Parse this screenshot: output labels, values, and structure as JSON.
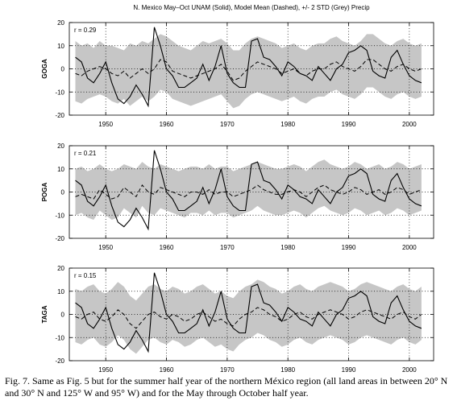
{
  "figure_title": "N. Mexico May–Oct UNAM (Solid), Model Mean (Dashed), +/- 2 STD (Grey) Precip",
  "caption": "Fig. 7. Same as Fig. 5 but for the summer half year of the northern México region (all land areas in between 20° N and 30° N and 125° W and 95° W) and for the May through October half year.",
  "chart_data": [
    {
      "type": "line",
      "ylabel": "GOGA",
      "annotation": "r = 0.29",
      "x": [
        1945,
        1946,
        1947,
        1948,
        1949,
        1950,
        1951,
        1952,
        1953,
        1954,
        1955,
        1956,
        1957,
        1958,
        1959,
        1960,
        1961,
        1962,
        1963,
        1964,
        1965,
        1966,
        1967,
        1968,
        1969,
        1970,
        1971,
        1972,
        1973,
        1974,
        1975,
        1976,
        1977,
        1978,
        1979,
        1980,
        1981,
        1982,
        1983,
        1984,
        1985,
        1986,
        1987,
        1988,
        1989,
        1990,
        1991,
        1992,
        1993,
        1994,
        1995,
        1996,
        1997,
        1998,
        1999,
        2000,
        2001,
        2002
      ],
      "xlim": [
        1944,
        2004
      ],
      "ylim": [
        -20,
        20
      ],
      "xticks": [
        1950,
        1960,
        1970,
        1980,
        1990,
        2000
      ],
      "yticks": [
        -20,
        -10,
        0,
        10,
        20
      ],
      "grid": "dotted",
      "series": [
        {
          "style": "solid",
          "values": [
            5,
            3,
            -4,
            -6,
            -2,
            3,
            -6,
            -13,
            -15,
            -12,
            -7,
            -11,
            -16,
            18,
            10,
            0,
            -3,
            -8,
            -8,
            -6,
            -4,
            2,
            -5,
            1,
            10,
            -2,
            -6,
            -8,
            -8,
            12,
            13,
            5,
            4,
            1,
            -3,
            3,
            1,
            -2,
            -3,
            -5,
            1,
            -2,
            -5,
            0,
            2,
            7,
            8,
            10,
            8,
            -1,
            -3,
            -4,
            5,
            8,
            2,
            -3,
            -5,
            -6
          ]
        },
        {
          "style": "dashed",
          "values": [
            -2,
            -3,
            -1,
            0,
            1,
            0,
            -2,
            -3,
            -1,
            -4,
            -2,
            0,
            -2,
            0,
            4,
            3,
            -1,
            -2,
            -3,
            -4,
            -3,
            -2,
            -1,
            0,
            2,
            -1,
            -5,
            -4,
            -1,
            1,
            3,
            2,
            1,
            0,
            -2,
            -1,
            0,
            -2,
            -3,
            -1,
            0,
            0,
            2,
            3,
            1,
            0,
            -1,
            1,
            4,
            4,
            2,
            0,
            -1,
            1,
            2,
            0,
            -1,
            0
          ]
        },
        {
          "style": "band_upper",
          "values": [
            12,
            10,
            11,
            9,
            12,
            10,
            10,
            9,
            8,
            11,
            10,
            12,
            11,
            13,
            15,
            14,
            12,
            10,
            9,
            8,
            10,
            12,
            11,
            12,
            13,
            11,
            8,
            8,
            11,
            13,
            14,
            13,
            12,
            11,
            9,
            10,
            11,
            9,
            8,
            10,
            11,
            11,
            13,
            14,
            12,
            11,
            10,
            12,
            15,
            15,
            13,
            11,
            10,
            12,
            13,
            11,
            10,
            11
          ]
        },
        {
          "style": "band_lower",
          "values": [
            -14,
            -15,
            -13,
            -12,
            -11,
            -12,
            -14,
            -15,
            -13,
            -16,
            -14,
            -12,
            -14,
            -12,
            -9,
            -10,
            -13,
            -14,
            -15,
            -16,
            -15,
            -14,
            -13,
            -12,
            -11,
            -14,
            -17,
            -16,
            -13,
            -11,
            -10,
            -11,
            -12,
            -13,
            -14,
            -13,
            -12,
            -14,
            -15,
            -13,
            -12,
            -12,
            -10,
            -9,
            -11,
            -12,
            -13,
            -11,
            -8,
            -8,
            -10,
            -12,
            -13,
            -11,
            -10,
            -12,
            -13,
            -12
          ]
        }
      ]
    },
    {
      "type": "line",
      "ylabel": "POGA",
      "annotation": "r = 0.21",
      "x": [
        1945,
        1946,
        1947,
        1948,
        1949,
        1950,
        1951,
        1952,
        1953,
        1954,
        1955,
        1956,
        1957,
        1958,
        1959,
        1960,
        1961,
        1962,
        1963,
        1964,
        1965,
        1966,
        1967,
        1968,
        1969,
        1970,
        1971,
        1972,
        1973,
        1974,
        1975,
        1976,
        1977,
        1978,
        1979,
        1980,
        1981,
        1982,
        1983,
        1984,
        1985,
        1986,
        1987,
        1988,
        1989,
        1990,
        1991,
        1992,
        1993,
        1994,
        1995,
        1996,
        1997,
        1998,
        1999,
        2000,
        2001,
        2002
      ],
      "xlim": [
        1944,
        2004
      ],
      "ylim": [
        -20,
        20
      ],
      "xticks": [
        1950,
        1960,
        1970,
        1980,
        1990,
        2000
      ],
      "yticks": [
        -20,
        -10,
        0,
        10,
        20
      ],
      "grid": "dotted",
      "series": [
        {
          "style": "solid",
          "values": [
            5,
            3,
            -4,
            -6,
            -2,
            3,
            -6,
            -13,
            -15,
            -12,
            -7,
            -11,
            -16,
            18,
            10,
            0,
            -3,
            -8,
            -8,
            -6,
            -4,
            2,
            -5,
            1,
            10,
            -2,
            -6,
            -8,
            -8,
            12,
            13,
            5,
            4,
            1,
            -3,
            3,
            1,
            -2,
            -3,
            -5,
            1,
            -2,
            -5,
            0,
            2,
            7,
            8,
            10,
            8,
            -1,
            -3,
            -4,
            5,
            8,
            2,
            -3,
            -5,
            -6
          ]
        },
        {
          "style": "dashed",
          "values": [
            -2,
            -1,
            -2,
            -3,
            1,
            -1,
            -3,
            -2,
            2,
            0,
            -2,
            3,
            0,
            -1,
            2,
            1,
            0,
            -1,
            -2,
            0,
            0,
            -1,
            1,
            -1,
            0,
            0,
            -2,
            -1,
            0,
            1,
            3,
            1,
            0,
            -1,
            -1,
            0,
            1,
            0,
            -2,
            0,
            2,
            3,
            1,
            0,
            -1,
            0,
            2,
            1,
            -1,
            0,
            1,
            -1,
            0,
            2,
            1,
            -1,
            0,
            1
          ]
        },
        {
          "style": "band_upper",
          "values": [
            10,
            11,
            9,
            10,
            12,
            10,
            9,
            10,
            12,
            11,
            10,
            13,
            11,
            10,
            12,
            11,
            10,
            9,
            10,
            11,
            11,
            10,
            12,
            10,
            11,
            11,
            9,
            10,
            11,
            12,
            13,
            12,
            11,
            10,
            10,
            11,
            12,
            11,
            9,
            11,
            13,
            14,
            12,
            11,
            10,
            11,
            13,
            12,
            10,
            11,
            12,
            10,
            11,
            13,
            12,
            10,
            11,
            12
          ]
        },
        {
          "style": "band_lower",
          "values": [
            -10,
            -9,
            -11,
            -12,
            -8,
            -10,
            -12,
            -11,
            -7,
            -9,
            -11,
            -6,
            -9,
            -10,
            -7,
            -8,
            -9,
            -10,
            -11,
            -9,
            -9,
            -10,
            -8,
            -10,
            -9,
            -9,
            -11,
            -10,
            -9,
            -8,
            -6,
            -8,
            -9,
            -10,
            -10,
            -9,
            -8,
            -9,
            -11,
            -9,
            -7,
            -6,
            -8,
            -9,
            -10,
            -9,
            -7,
            -8,
            -10,
            -9,
            -8,
            -10,
            -9,
            -7,
            -8,
            -10,
            -9,
            -8
          ]
        }
      ]
    },
    {
      "type": "line",
      "ylabel": "TAGA",
      "annotation": "r = 0.15",
      "x": [
        1945,
        1946,
        1947,
        1948,
        1949,
        1950,
        1951,
        1952,
        1953,
        1954,
        1955,
        1956,
        1957,
        1958,
        1959,
        1960,
        1961,
        1962,
        1963,
        1964,
        1965,
        1966,
        1967,
        1968,
        1969,
        1970,
        1971,
        1972,
        1973,
        1974,
        1975,
        1976,
        1977,
        1978,
        1979,
        1980,
        1981,
        1982,
        1983,
        1984,
        1985,
        1986,
        1987,
        1988,
        1989,
        1990,
        1991,
        1992,
        1993,
        1994,
        1995,
        1996,
        1997,
        1998,
        1999,
        2000,
        2001,
        2002
      ],
      "xlim": [
        1944,
        2004
      ],
      "ylim": [
        -20,
        20
      ],
      "xticks": [
        1950,
        1960,
        1970,
        1980,
        1990,
        2000
      ],
      "yticks": [
        -20,
        -10,
        0,
        10,
        20
      ],
      "grid": "dotted",
      "series": [
        {
          "style": "solid",
          "values": [
            5,
            3,
            -4,
            -6,
            -2,
            3,
            -6,
            -13,
            -15,
            -12,
            -7,
            -11,
            -16,
            18,
            10,
            0,
            -3,
            -8,
            -8,
            -6,
            -4,
            2,
            -5,
            1,
            10,
            -2,
            -6,
            -8,
            -8,
            12,
            13,
            5,
            4,
            1,
            -3,
            3,
            1,
            -2,
            -3,
            -5,
            1,
            -2,
            -5,
            0,
            2,
            7,
            8,
            10,
            8,
            -1,
            -3,
            -4,
            5,
            8,
            2,
            -3,
            -5,
            -6
          ]
        },
        {
          "style": "dashed",
          "values": [
            -1,
            -2,
            0,
            1,
            -2,
            -3,
            -1,
            2,
            0,
            -4,
            -6,
            -3,
            0,
            1,
            -1,
            -2,
            0,
            -1,
            -3,
            -2,
            0,
            1,
            -1,
            -3,
            -2,
            -4,
            -5,
            -2,
            0,
            1,
            3,
            2,
            0,
            -1,
            -3,
            -2,
            0,
            1,
            -1,
            -2,
            0,
            1,
            2,
            1,
            0,
            -2,
            -1,
            1,
            2,
            1,
            0,
            -1,
            -2,
            0,
            1,
            -1,
            -2,
            0
          ]
        },
        {
          "style": "band_upper",
          "values": [
            11,
            10,
            12,
            13,
            10,
            9,
            11,
            14,
            12,
            8,
            6,
            9,
            12,
            13,
            11,
            10,
            12,
            11,
            9,
            10,
            12,
            13,
            11,
            9,
            10,
            8,
            7,
            10,
            12,
            13,
            15,
            14,
            12,
            11,
            9,
            10,
            12,
            13,
            11,
            10,
            12,
            13,
            14,
            13,
            12,
            10,
            11,
            13,
            14,
            13,
            12,
            11,
            10,
            12,
            13,
            11,
            10,
            12
          ]
        },
        {
          "style": "band_lower",
          "values": [
            -12,
            -13,
            -11,
            -10,
            -13,
            -14,
            -12,
            -9,
            -11,
            -15,
            -17,
            -14,
            -11,
            -10,
            -12,
            -13,
            -11,
            -12,
            -14,
            -13,
            -11,
            -10,
            -12,
            -14,
            -13,
            -15,
            -16,
            -13,
            -11,
            -10,
            -8,
            -9,
            -11,
            -12,
            -14,
            -13,
            -11,
            -10,
            -12,
            -13,
            -11,
            -10,
            -9,
            -10,
            -11,
            -13,
            -12,
            -10,
            -9,
            -10,
            -11,
            -12,
            -13,
            -11,
            -10,
            -12,
            -13,
            -11
          ]
        }
      ]
    }
  ]
}
